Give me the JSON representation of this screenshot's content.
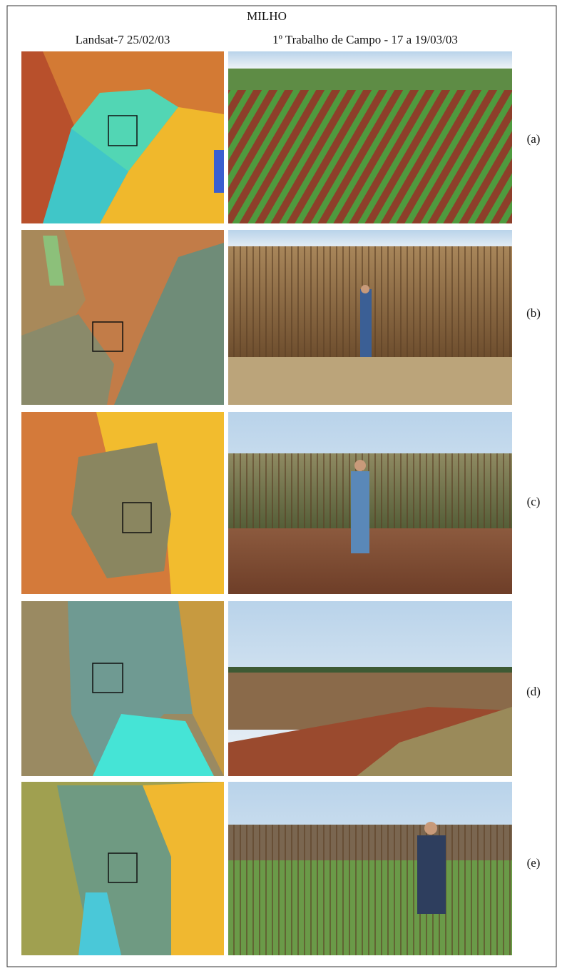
{
  "header": {
    "title": "MILHO",
    "left_caption": "Landsat-7 25/02/03",
    "right_caption": "1º Trabalho de Campo - 17 a 19/03/03"
  },
  "rows": [
    {
      "label": "(a)"
    },
    {
      "label": "(b)"
    },
    {
      "label": "(c)"
    },
    {
      "label": "(d)"
    },
    {
      "label": "(e)"
    }
  ]
}
